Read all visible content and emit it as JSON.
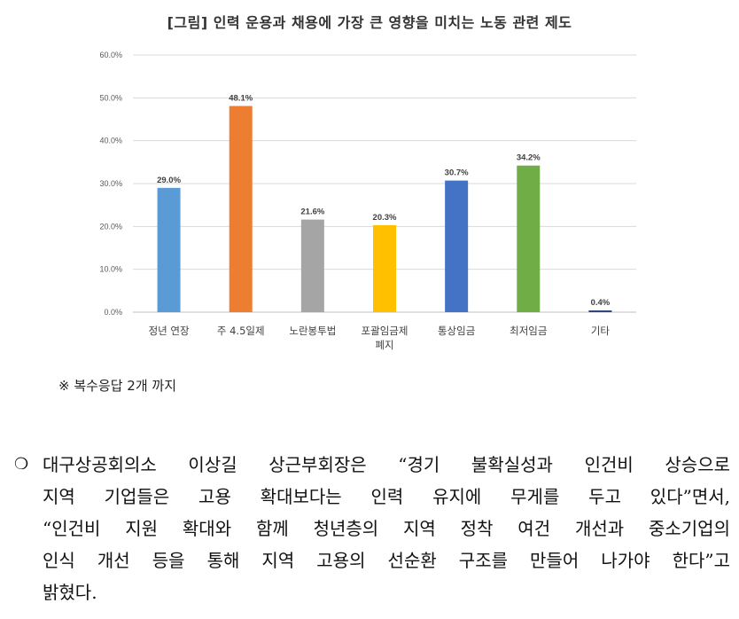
{
  "figure": {
    "title": "[그림] 인력 운용과 채용에 가장 큰 영향을 미치는 노동 관련 제도",
    "note": "※ 복수응답 2개 까지"
  },
  "chart_data": {
    "type": "bar",
    "categories": [
      "정년 연장",
      "주 4.5일제",
      "노란봉투법",
      "포괄임금제 폐지",
      "통상임금",
      "최저임금",
      "기타"
    ],
    "category_lines": [
      [
        "정년 연장"
      ],
      [
        "주 4.5일제"
      ],
      [
        "노란봉투법"
      ],
      [
        "포괄임금제",
        "폐지"
      ],
      [
        "통상임금"
      ],
      [
        "최저임금"
      ],
      [
        "기타"
      ]
    ],
    "values": [
      29.0,
      48.1,
      21.6,
      20.3,
      30.7,
      34.2,
      0.4
    ],
    "data_labels": [
      "29.0%",
      "48.1%",
      "21.6%",
      "20.3%",
      "30.7%",
      "34.2%",
      "0.4%"
    ],
    "colors": [
      "#5B9BD5",
      "#ED7D31",
      "#A5A5A5",
      "#FFC000",
      "#4472C4",
      "#70AD47",
      "#264478"
    ],
    "ylim": [
      0,
      60
    ],
    "yticks": [
      0,
      10,
      20,
      30,
      40,
      50,
      60
    ],
    "ytick_labels": [
      "0.0%",
      "10.0%",
      "20.0%",
      "30.0%",
      "40.0%",
      "50.0%",
      "60.0%"
    ],
    "grid": true,
    "legend": "none"
  },
  "paragraph": {
    "bullet_icon": "hollow-circle-bullet",
    "lines": [
      "대구상공회의소 이상길 상근부회장은 “경기 불확실성과 인건비 상승으로",
      "지역 기업들은 고용 확대보다는 인력 유지에 무게를 두고 있다”면서,",
      "“인건비 지원 확대와 함께 청년층의 지역 정착 여건 개선과 중소기업의",
      "인식 개선 등을 통해 지역 고용의 선순환 구조를 만들어 나가야 한다”고",
      "밝혔다."
    ]
  }
}
